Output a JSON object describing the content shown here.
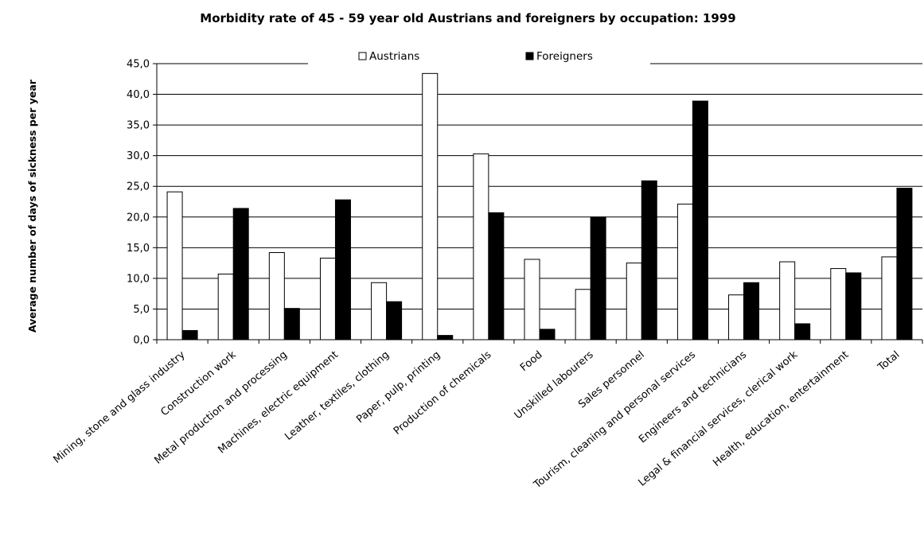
{
  "chart_data": {
    "type": "bar",
    "title": "Morbidity rate of 45 - 59 year old Austrians and foreigners by occupation: 1999",
    "xlabel": "",
    "ylabel": "Average number of days of sickness per year",
    "ylim": [
      0,
      45
    ],
    "ytick_step": 5,
    "ytick_labels": [
      "0,0",
      "5,0",
      "10,0",
      "15,0",
      "20,0",
      "25,0",
      "30,0",
      "35,0",
      "40,0",
      "45,0"
    ],
    "grid": true,
    "legend_position": "top",
    "categories": [
      "Mining, stone and glass industry",
      "Construction work",
      "Metal production and processing",
      "Machines, electric equipment",
      "Leather, textiles, clothing",
      "Paper, pulp, printing",
      "Production of chemicals",
      "Food",
      "Unskilled labourers",
      "Sales personnel",
      "Tourism, cleaning and personal services",
      "Engineers and technicians",
      "Legal & financial services, clerical work",
      "Health, education, entertainment",
      "Total"
    ],
    "series": [
      {
        "name": "Austrians",
        "color": "#ffffff",
        "values": [
          24.1,
          10.7,
          14.2,
          13.3,
          9.3,
          43.4,
          30.3,
          13.1,
          8.2,
          12.5,
          22.1,
          7.3,
          12.7,
          11.6,
          13.5
        ]
      },
      {
        "name": "Foreigners",
        "color": "#000000",
        "values": [
          1.5,
          21.4,
          5.1,
          22.8,
          6.2,
          0.7,
          20.7,
          1.7,
          20.0,
          25.9,
          38.9,
          9.3,
          2.6,
          10.9,
          24.7
        ]
      }
    ]
  }
}
